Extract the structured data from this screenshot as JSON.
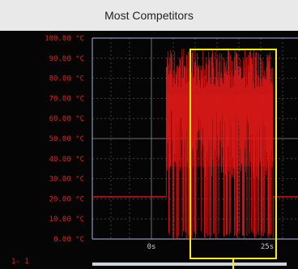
{
  "caption": "Most Competitors",
  "chart_data": {
    "type": "line",
    "title": "Most Competitors",
    "ylabel": "",
    "xlabel": "",
    "y_ticks": [
      "100.00 °C",
      "90.00 °C",
      "80.00 °C",
      "70.00 °C",
      "60.00 °C",
      "50.00 °C",
      "40.00 °C",
      "30.00 °C",
      "20.00 °C",
      "10.00 °C",
      "0.00 °C"
    ],
    "ylim": [
      0,
      100
    ],
    "x_ticks": [
      "0s",
      "25s"
    ],
    "channel_label": "1- 1",
    "series": [
      {
        "color": "#e01818",
        "baseline": 21,
        "oscillation_start_s": 3.2,
        "oscillation_end_s": 26.3,
        "oscillation_low": 0,
        "oscillation_high": 95
      }
    ],
    "colors": {
      "background": "#050505",
      "trace": "#e01818",
      "label": "#e02020",
      "highlight_box": "#ffee00",
      "grid": "#7a7a7a"
    }
  }
}
